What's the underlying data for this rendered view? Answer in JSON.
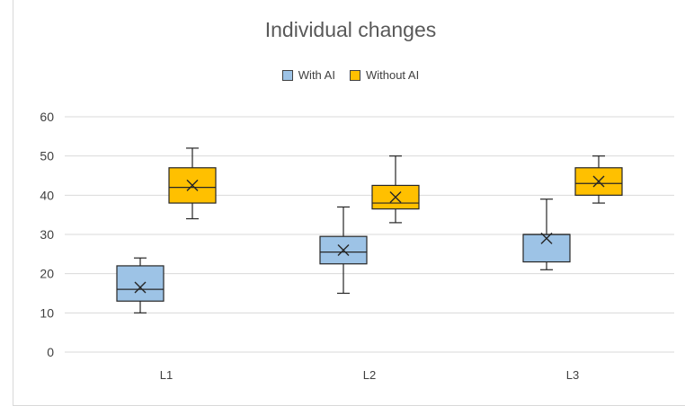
{
  "chart_data": {
    "type": "boxplot",
    "title": "Individual changes",
    "xlabel": "",
    "ylabel": "",
    "ylim": [
      0,
      60
    ],
    "yticks": [
      0,
      10,
      20,
      30,
      40,
      50,
      60
    ],
    "grid": true,
    "legend_position": "top",
    "categories": [
      "L1",
      "L2",
      "L3"
    ],
    "series": [
      {
        "name": "With AI",
        "color": "#9dc3e6",
        "boxes": [
          {
            "min": 10,
            "q1": 13,
            "median": 16,
            "q3": 22,
            "max": 24,
            "mean": 16.5
          },
          {
            "min": 15,
            "q1": 22.5,
            "median": 25.5,
            "q3": 29.5,
            "max": 37,
            "mean": 26
          },
          {
            "min": 21,
            "q1": 23,
            "median": 30,
            "q3": 30,
            "max": 39,
            "mean": 29
          }
        ]
      },
      {
        "name": "Without AI",
        "color": "#ffc000",
        "boxes": [
          {
            "min": 34,
            "q1": 38,
            "median": 42,
            "q3": 47,
            "max": 52,
            "mean": 42.5
          },
          {
            "min": 33,
            "q1": 36.5,
            "median": 38,
            "q3": 42.5,
            "max": 50,
            "mean": 39.5
          },
          {
            "min": 38,
            "q1": 40,
            "median": 43,
            "q3": 47,
            "max": 50,
            "mean": 43.5
          }
        ]
      }
    ]
  }
}
